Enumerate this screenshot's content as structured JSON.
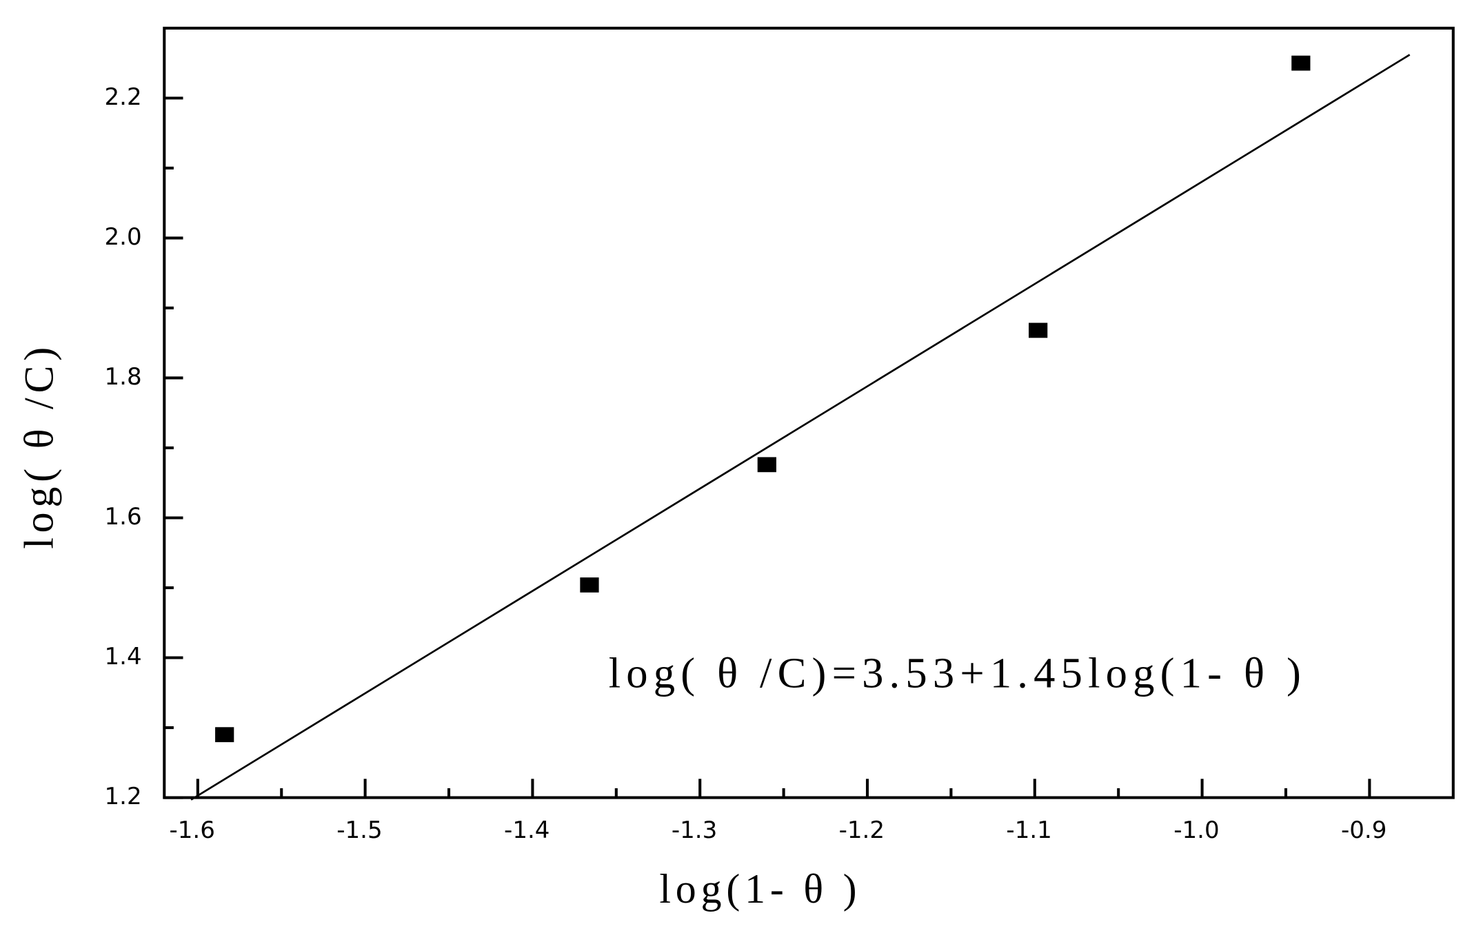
{
  "chart_data": {
    "type": "scatter",
    "xlabel": "log(1- θ )",
    "ylabel": "log( θ /C)",
    "annotation": "log( θ /C)=3.53+1.45log(1- θ )",
    "series": [
      {
        "color": "#000000",
        "x": [
          -1.584,
          -1.366,
          -1.26,
          -1.098,
          -0.941
        ],
        "values": [
          1.29,
          1.504,
          1.676,
          1.868,
          2.25
        ]
      }
    ],
    "fit": {
      "color": "#000000",
      "x": [
        -1.604,
        -0.876
      ],
      "values": [
        1.197,
        2.262
      ]
    },
    "xlim": [
      -1.62,
      -0.85
    ],
    "ylim": [
      1.2,
      2.3
    ],
    "xticks": [
      -1.6,
      -1.5,
      -1.4,
      -1.3,
      -1.2,
      -1.1,
      {
        "value": -1.0,
        "label": "-1.0"
      },
      -0.9
    ],
    "xminorticks": [
      -1.55,
      -1.45,
      -1.35,
      -1.25,
      -1.15,
      -1.05,
      -0.95
    ],
    "yticks": [
      {
        "value": 1.2,
        "label": "1.2"
      },
      {
        "value": 1.4,
        "label": "1.4"
      },
      {
        "value": 1.6,
        "label": "1.6"
      },
      {
        "value": 1.8,
        "label": "1.8"
      },
      {
        "value": 2.0,
        "label": "2.0"
      },
      2.2
    ],
    "yminorticks": [
      1.3,
      1.5,
      1.7,
      1.9,
      2.1
    ]
  }
}
